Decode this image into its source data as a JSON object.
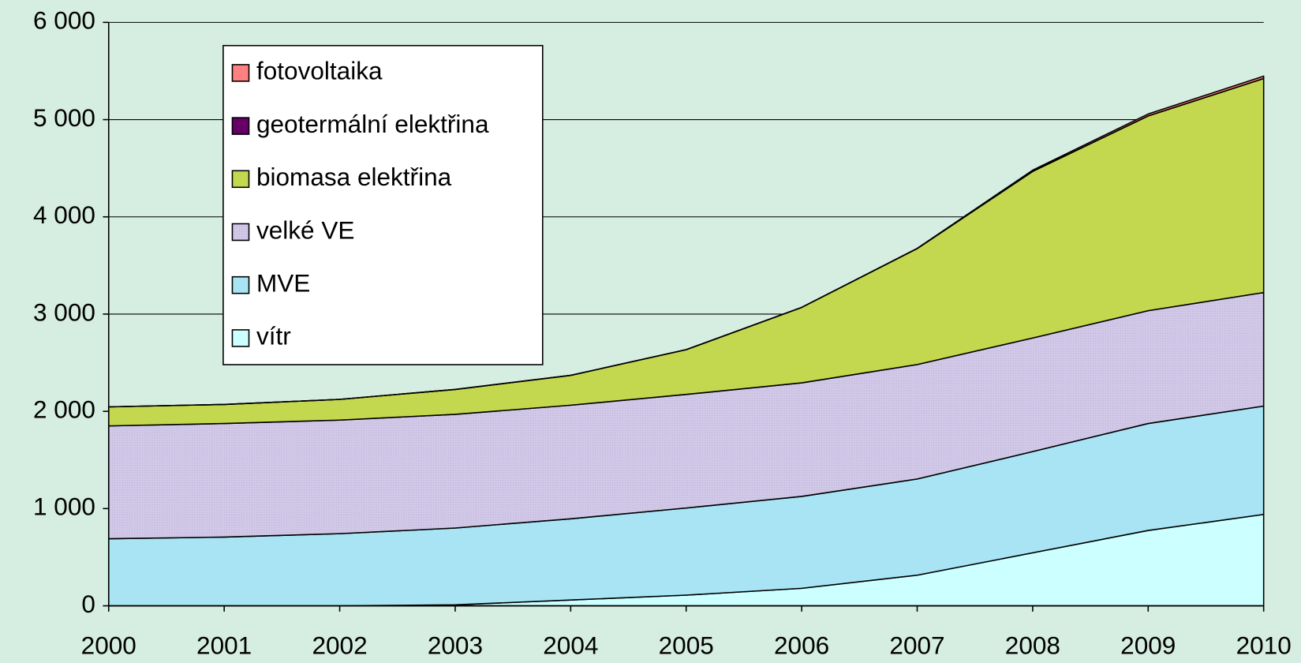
{
  "chart_data": {
    "type": "stacked_area",
    "categories": [
      "2000",
      "2001",
      "2002",
      "2003",
      "2004",
      "2005",
      "2006",
      "2007",
      "2008",
      "2009",
      "2010"
    ],
    "series": [
      {
        "name": "vítr",
        "color": "#ccffff",
        "values": [
          0,
          0,
          0,
          10,
          60,
          110,
          180,
          315,
          545,
          775,
          940
        ]
      },
      {
        "name": "MVE",
        "color": "#a8e4f4",
        "values": [
          690,
          707,
          742,
          790,
          835,
          896,
          945,
          989,
          1041,
          1100,
          1114
        ]
      },
      {
        "name": "velké VE",
        "color": "#d2c9e8",
        "values": [
          1160,
          1168,
          1168,
          1169,
          1168,
          1168,
          1168,
          1177,
          1168,
          1160,
          1168
        ]
      },
      {
        "name": "biomasa elektřina",
        "color": "#c3d84f",
        "values": [
          196,
          196,
          213,
          256,
          307,
          460,
          776,
          1193,
          1713,
          2003,
          2200
        ]
      },
      {
        "name": "geotermální elektřina",
        "color": "#660066",
        "values": [
          0,
          0,
          0,
          0,
          0,
          0,
          0,
          0,
          0,
          0,
          0
        ]
      },
      {
        "name": "fotovoltaika",
        "color": "#ff8080",
        "values": [
          0,
          0,
          0,
          0,
          0,
          0,
          0,
          2,
          13,
          20,
          25
        ]
      }
    ],
    "ylim": [
      0,
      6000
    ],
    "yticks": [
      0,
      {
        "value": 1000,
        "label": "1 000"
      },
      {
        "value": 2000,
        "label": "2 000"
      },
      {
        "value": 3000,
        "label": "3 000"
      },
      {
        "value": 4000,
        "label": "4 000"
      },
      {
        "value": 5000,
        "label": "5 000"
      },
      {
        "value": 6000,
        "label": "6 000"
      }
    ],
    "grid": true,
    "legend": "upper left"
  }
}
